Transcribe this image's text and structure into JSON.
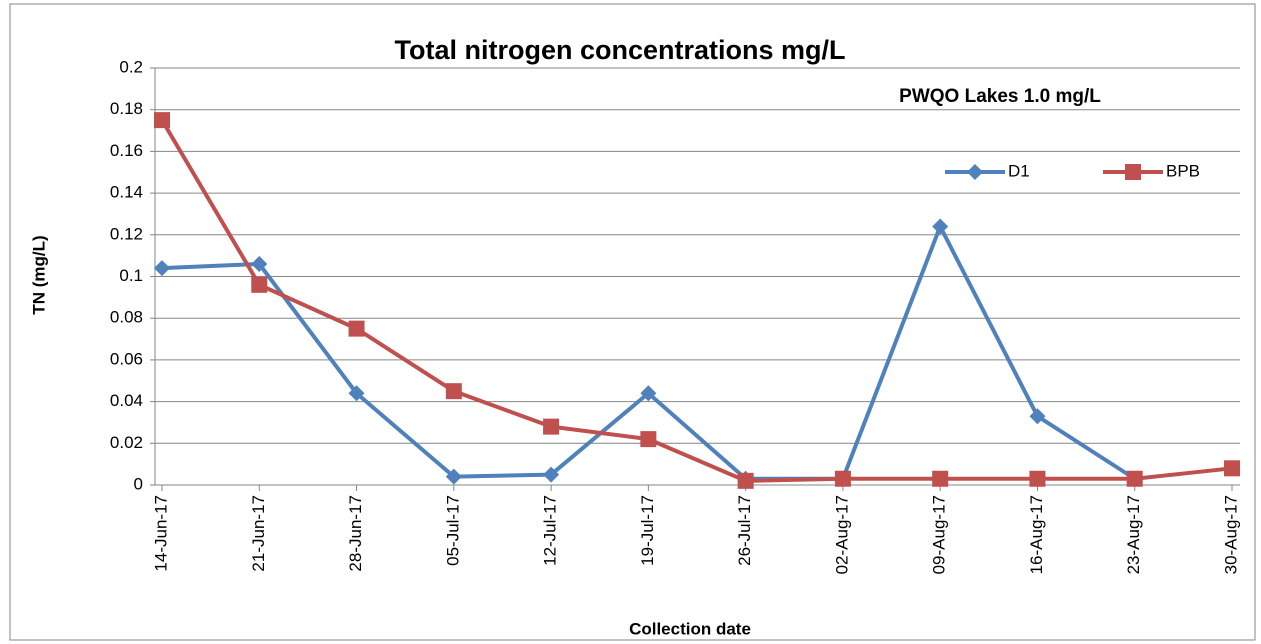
{
  "chart_data": {
    "type": "line",
    "title": "Total nitrogen concentrations mg/L",
    "annotation": "PWQO Lakes 1.0 mg/L",
    "x_label": "Collection date",
    "y_label": "TN (mg/L)",
    "categories": [
      "14-Jun-17",
      "21-Jun-17",
      "28-Jun-17",
      "05-Jul-17",
      "12-Jul-17",
      "19-Jul-17",
      "26-Jul-17",
      "02-Aug-17",
      "09-Aug-17",
      "16-Aug-17",
      "23-Aug-17",
      "30-Aug-17"
    ],
    "series": [
      {
        "name": "D1",
        "color": "#4f81bd",
        "marker": "diamond",
        "values": [
          0.104,
          0.106,
          0.044,
          0.004,
          0.005,
          0.044,
          0.003,
          0.003,
          0.124,
          0.033,
          0.003,
          null
        ]
      },
      {
        "name": "BPB",
        "color": "#c0504d",
        "marker": "square",
        "values": [
          0.175,
          0.096,
          0.075,
          0.045,
          0.028,
          0.022,
          0.002,
          0.003,
          0.003,
          0.003,
          0.003,
          0.008
        ]
      }
    ],
    "ylim": [
      0,
      0.2
    ],
    "yticks": [
      0,
      0.02,
      0.04,
      0.06,
      0.08,
      0.1,
      0.12,
      0.14,
      0.16,
      0.18,
      0.2
    ],
    "grid": true,
    "legend": "upper right"
  }
}
